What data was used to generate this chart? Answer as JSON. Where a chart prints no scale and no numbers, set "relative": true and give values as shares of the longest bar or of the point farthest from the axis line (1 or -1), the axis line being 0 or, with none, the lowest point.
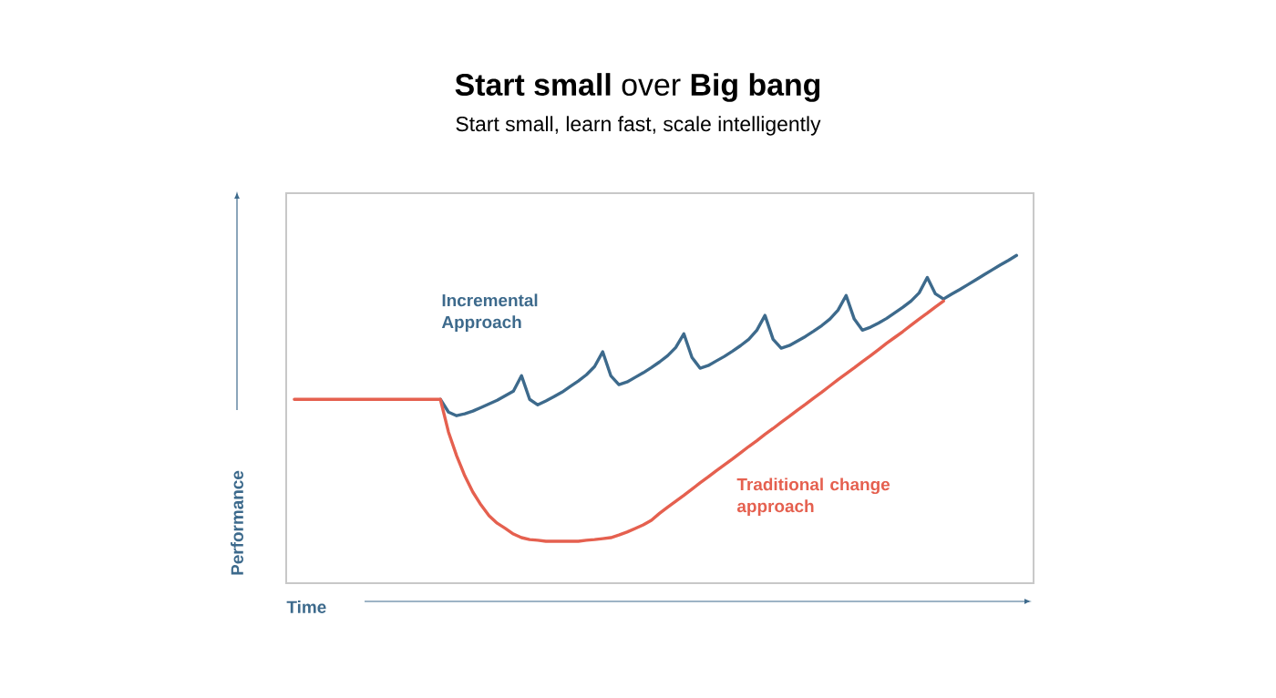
{
  "chart_data": {
    "type": "line",
    "title": "**Start small** over **Big bang**",
    "subtitle": "Start small, learn fast, scale intelligently",
    "xlabel": "Time",
    "ylabel": "Performance",
    "relative": true,
    "categories": [
      null,
      null,
      null,
      null,
      null,
      null,
      null,
      null,
      null,
      null,
      null,
      null,
      null,
      null,
      null,
      null,
      null,
      null,
      null,
      null,
      null,
      null,
      null,
      null,
      null,
      null,
      null,
      null,
      null,
      null,
      null,
      null,
      null,
      null,
      null,
      null,
      null,
      null,
      null,
      null,
      null,
      null,
      null,
      null,
      null,
      null,
      null,
      null,
      null,
      null,
      null,
      null,
      null,
      null,
      null,
      null,
      null,
      null,
      null,
      null,
      null,
      null,
      null,
      null,
      null,
      null,
      null,
      null,
      null,
      null,
      null,
      null,
      null,
      null,
      null,
      null,
      null,
      null,
      null,
      null,
      null,
      null,
      null,
      null,
      null,
      null,
      null,
      null,
      null,
      null
    ],
    "series": [
      {
        "name": "Incremental Approach",
        "color": "#3d6a8c",
        "values": [
          null,
          null,
          null,
          null,
          null,
          null,
          null,
          null,
          null,
          null,
          null,
          null,
          null,
          null,
          null,
          null,
          null,
          null,
          0.561,
          0.522,
          0.511,
          0.517,
          0.525,
          0.536,
          0.547,
          0.558,
          0.572,
          0.586,
          0.633,
          0.561,
          0.544,
          0.556,
          0.569,
          0.583,
          0.6,
          0.617,
          0.636,
          0.661,
          0.706,
          0.633,
          0.606,
          0.614,
          0.628,
          0.642,
          0.658,
          0.675,
          0.694,
          0.719,
          0.761,
          0.689,
          0.656,
          0.664,
          0.678,
          0.692,
          0.708,
          0.725,
          0.744,
          0.772,
          0.817,
          0.744,
          0.717,
          0.725,
          0.739,
          0.753,
          0.769,
          0.786,
          0.806,
          0.833,
          0.878,
          0.806,
          0.772,
          0.781,
          0.794,
          0.808,
          0.825,
          0.842,
          0.861,
          0.886,
          0.933,
          0.883,
          0.867,
          0.882,
          0.896,
          0.911,
          0.926,
          0.941,
          0.956,
          0.971,
          0.985,
          1
        ]
      },
      {
        "name": "Traditional change approach",
        "color": "#e5604f",
        "values": [
          0.561,
          0.561,
          0.561,
          0.561,
          0.561,
          0.561,
          0.561,
          0.561,
          0.561,
          0.561,
          0.561,
          0.561,
          0.561,
          0.561,
          0.561,
          0.561,
          0.561,
          0.561,
          0.561,
          0.461,
          0.389,
          0.328,
          0.278,
          0.239,
          0.206,
          0.183,
          0.167,
          0.15,
          0.139,
          0.133,
          0.131,
          0.128,
          0.128,
          0.128,
          0.128,
          0.128,
          0.131,
          0.133,
          0.136,
          0.139,
          0.147,
          0.156,
          0.167,
          0.178,
          0.192,
          0.213,
          0.232,
          0.25,
          0.268,
          0.287,
          0.306,
          0.324,
          0.343,
          0.361,
          0.379,
          0.398,
          0.417,
          0.435,
          0.454,
          0.472,
          0.491,
          0.509,
          0.528,
          0.546,
          0.565,
          0.583,
          0.602,
          0.621,
          0.639,
          0.657,
          0.676,
          0.694,
          0.713,
          0.732,
          0.75,
          0.768,
          0.787,
          0.806,
          0.824,
          0.843,
          0.861,
          null,
          null,
          null,
          null,
          null,
          null,
          null,
          null,
          null
        ]
      }
    ]
  }
}
